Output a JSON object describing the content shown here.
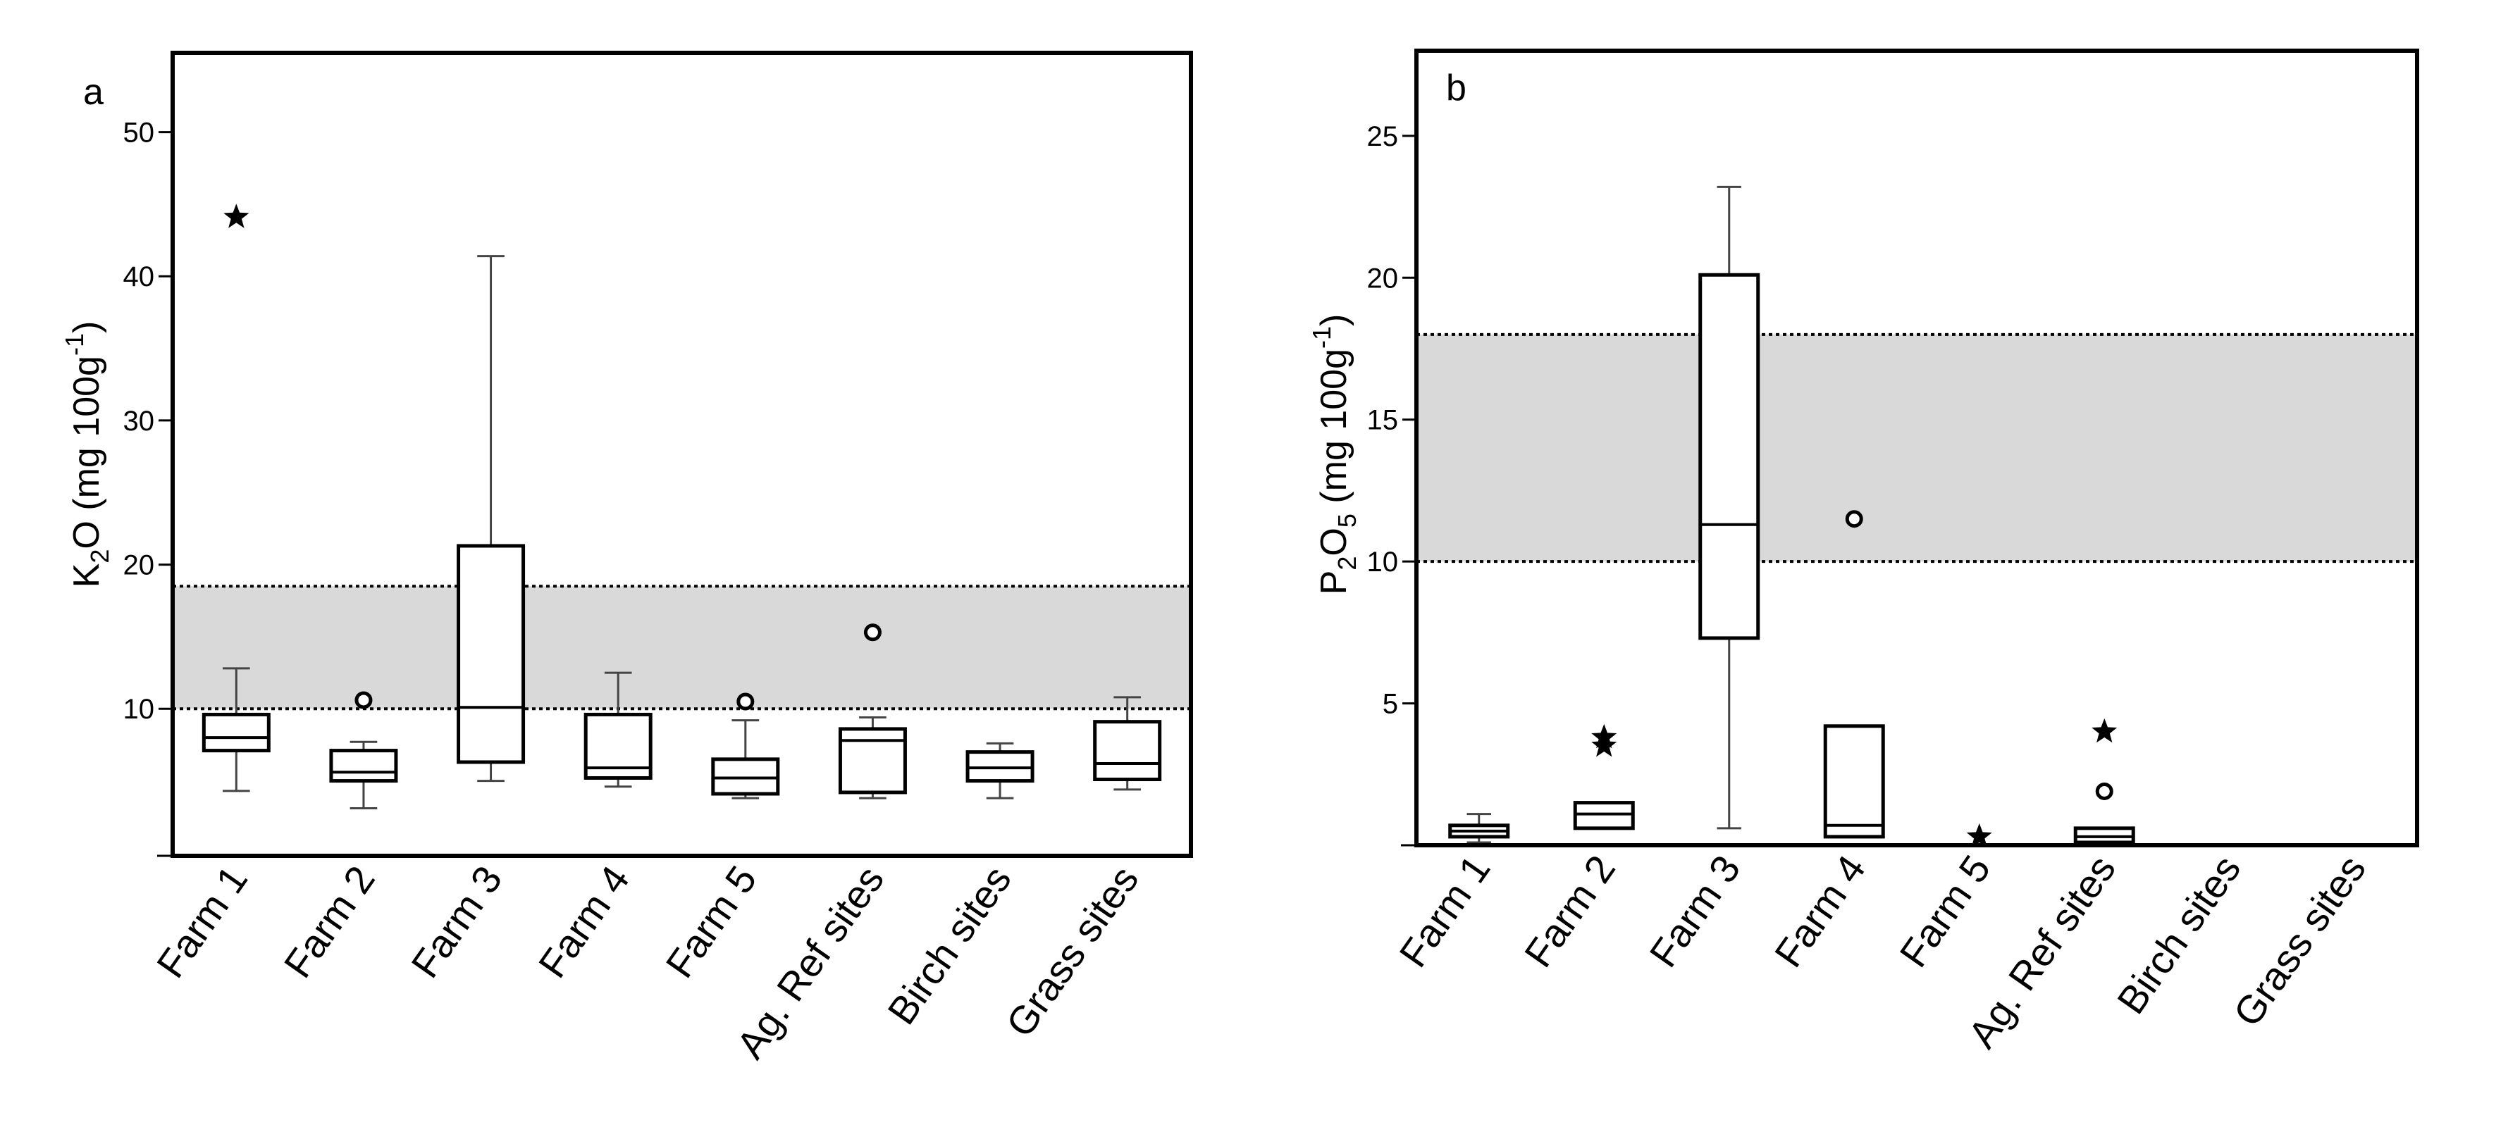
{
  "chart_data": [
    {
      "type": "boxplot",
      "panel_label": "a",
      "ylabel_pre": "K",
      "ylabel_sub": "2",
      "ylabel_post": "O  (mg 100g",
      "ylabel_sup": "-1",
      "ylabel_end": ")",
      "ylim": [
        -0.2,
        55.5
      ],
      "yticks": [
        10,
        20,
        30,
        40,
        50
      ],
      "yticklabels": [
        "10",
        "20",
        "30",
        "40",
        "50"
      ],
      "reference_band": [
        10.0,
        18.5
      ],
      "categories": [
        "Farm 1",
        "Farm 2",
        "Farm 3",
        "Farm 4",
        "Farm 5",
        "Ag. Ref sites",
        "Birch sites",
        "Grass sites"
      ],
      "boxes": [
        {
          "whisker_low": 4.3,
          "q1": 7.1,
          "median": 8.0,
          "q3": 9.6,
          "whisker_high": 12.8
        },
        {
          "whisker_low": 3.1,
          "q1": 5.0,
          "median": 5.6,
          "q3": 7.1,
          "whisker_high": 7.7
        },
        {
          "whisker_low": 5.0,
          "q1": 6.3,
          "median": 10.1,
          "q3": 21.3,
          "whisker_high": 41.4
        },
        {
          "whisker_low": 4.6,
          "q1": 5.2,
          "median": 5.9,
          "q3": 9.6,
          "whisker_high": 12.5
        },
        {
          "whisker_low": 3.8,
          "q1": 4.1,
          "median": 5.2,
          "q3": 6.5,
          "whisker_high": 9.2
        },
        {
          "whisker_low": 3.8,
          "q1": 4.2,
          "median": 7.8,
          "q3": 8.6,
          "whisker_high": 9.4
        },
        {
          "whisker_low": 3.8,
          "q1": 5.0,
          "median": 5.9,
          "q3": 7.0,
          "whisker_high": 7.6
        },
        {
          "whisker_low": 4.4,
          "q1": 5.1,
          "median": 6.2,
          "q3": 9.1,
          "whisker_high": 10.8
        }
      ],
      "outliers": [
        {
          "category": "Farm 1",
          "value": 44.1,
          "marker": "star"
        },
        {
          "category": "Farm 2",
          "value": 10.6,
          "marker": "circle"
        },
        {
          "category": "Farm 5",
          "value": 10.5,
          "marker": "circle"
        },
        {
          "category": "Ag. Ref sites",
          "value": 15.3,
          "marker": "circle"
        }
      ]
    },
    {
      "type": "boxplot",
      "panel_label": "b",
      "ylabel_pre": "P",
      "ylabel_sub": "2",
      "ylabel_post": "O",
      "ylabel_sub2": "5",
      "ylabel_post2": "  (mg 100g",
      "ylabel_sup": "-1",
      "ylabel_end": ")",
      "ylim": [
        0,
        28
      ],
      "yticks": [
        5,
        10,
        15,
        20,
        25
      ],
      "yticklabels": [
        "5",
        "10",
        "15",
        "20",
        "25"
      ],
      "reference_band": [
        10.0,
        18.0
      ],
      "categories": [
        "Farm 1",
        "Farm 2",
        "Farm 3",
        "Farm 4",
        "Farm 5",
        "Ag. Ref sites",
        "Birch sites",
        "Grass sites"
      ],
      "boxes": [
        {
          "whisker_low": 0.1,
          "q1": 0.3,
          "median": 0.5,
          "q3": 0.7,
          "whisker_high": 1.1
        },
        {
          "whisker_low": 0.6,
          "q1": 0.6,
          "median": 1.1,
          "q3": 1.5,
          "whisker_high": 1.5
        },
        {
          "whisker_low": 0.6,
          "q1": 7.3,
          "median": 11.3,
          "q3": 20.1,
          "whisker_high": 23.2
        },
        {
          "whisker_low": 0.3,
          "q1": 0.3,
          "median": 0.7,
          "q3": 4.2,
          "whisker_high": 4.2
        },
        {
          "whisker_low": 0.0,
          "q1": 0.0,
          "median": 0.0,
          "q3": 0.0,
          "whisker_high": 0.0
        },
        {
          "whisker_low": 0.1,
          "q1": 0.1,
          "median": 0.3,
          "q3": 0.6,
          "whisker_high": 0.6
        },
        {
          "whisker_low": 0.0,
          "q1": 0.0,
          "median": 0.0,
          "q3": 0.0,
          "whisker_high": 0.0
        },
        {
          "whisker_low": 0.0,
          "q1": 0.0,
          "median": 0.0,
          "q3": 0.0,
          "whisker_high": 0.0
        }
      ],
      "outliers": [
        {
          "category": "Farm 2",
          "value": 3.8,
          "marker": "star"
        },
        {
          "category": "Farm 2",
          "value": 3.5,
          "marker": "star"
        },
        {
          "category": "Farm 4",
          "value": 11.5,
          "marker": "circle"
        },
        {
          "category": "Farm 5",
          "value": 0.3,
          "marker": "star"
        },
        {
          "category": "Ag. Ref sites",
          "value": 4.0,
          "marker": "star"
        },
        {
          "category": "Ag. Ref sites",
          "value": 1.9,
          "marker": "circle"
        }
      ]
    }
  ]
}
